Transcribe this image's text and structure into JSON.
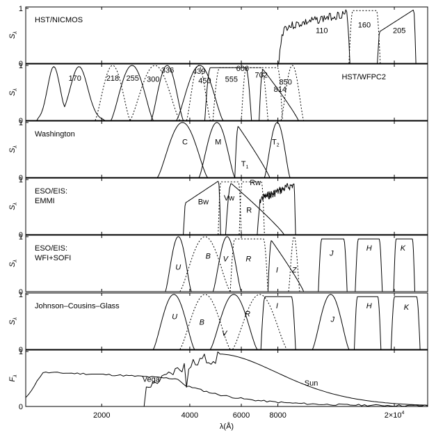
{
  "chart_data": {
    "type": "line",
    "xlabel": "λ(Å)",
    "x_scale": "log",
    "xlim": [
      1100,
      26000
    ],
    "x_ticks": [
      {
        "value": 2000,
        "label": "2000"
      },
      {
        "value": 4000,
        "label": "4000"
      },
      {
        "value": 6000,
        "label": "6000"
      },
      {
        "value": 8000,
        "label": "8000"
      },
      {
        "value": 20000,
        "label": "2×10",
        "exponent": "4"
      }
    ],
    "panels": [
      {
        "id": "hst-nicmos",
        "title": [
          "HST/NICMOS"
        ],
        "title_pos": "left",
        "ylabel": "S",
        "ylabel_sub": "λ",
        "ylim": [
          0,
          1
        ],
        "y_ticks": [
          "0",
          "1"
        ],
        "filters": [
          {
            "label": "110",
            "style": "solid",
            "italic": false,
            "lo": 8000,
            "hi": 14100,
            "kind": "noisy",
            "seed": 3,
            "label_x": 11300,
            "label_y": 0.55
          },
          {
            "label": "160",
            "style": "dotted",
            "italic": false,
            "lo": 14000,
            "hi": 17900,
            "kind": "flat",
            "label_x": 15800,
            "label_y": 0.65
          },
          {
            "label": "205",
            "style": "solid",
            "italic": false,
            "lo": 17500,
            "hi": 23700,
            "kind": "rising",
            "label_x": 20800,
            "label_y": 0.55
          }
        ]
      },
      {
        "id": "hst-wfpc2",
        "title": [
          "HST/WFPC2"
        ],
        "title_pos": "right",
        "ylabel": "S",
        "ylabel_sub": "λ",
        "ylim": [
          0,
          1
        ],
        "y_ticks": [
          "0",
          "1"
        ],
        "filters": [
          {
            "label": "170",
            "style": "solid",
            "italic": false,
            "lo": 1200,
            "hi": 2050,
            "kind": "double",
            "label_x": 1620,
            "label_y": 0.72
          },
          {
            "label": "218",
            "style": "dotted",
            "italic": false,
            "lo": 1900,
            "hi": 2500,
            "kind": "bell",
            "label_x": 2180,
            "label_y": 0.72
          },
          {
            "label": "255",
            "style": "solid",
            "italic": false,
            "lo": 2150,
            "hi": 3000,
            "kind": "bell",
            "label_x": 2550,
            "label_y": 0.72
          },
          {
            "label": "300",
            "style": "dotted",
            "italic": false,
            "lo": 2500,
            "hi": 3700,
            "kind": "bell",
            "label_x": 3000,
            "label_y": 0.7
          },
          {
            "label": "336",
            "style": "solid",
            "italic": false,
            "lo": 2950,
            "hi": 3800,
            "kind": "bell",
            "label_x": 3360,
            "label_y": 0.87
          },
          {
            "label": "439",
            "style": "dotted",
            "italic": false,
            "lo": 3900,
            "hi": 4700,
            "kind": "bell",
            "label_x": 4300,
            "label_y": 0.85
          },
          {
            "label": "450",
            "style": "solid",
            "italic": false,
            "lo": 3600,
            "hi": 5200,
            "kind": "bell",
            "label_x": 4500,
            "label_y": 0.68
          },
          {
            "label": "555",
            "style": "solid",
            "italic": false,
            "lo": 4500,
            "hi": 6500,
            "kind": "flat",
            "label_x": 5550,
            "label_y": 0.7
          },
          {
            "label": "606",
            "style": "dotted",
            "italic": false,
            "lo": 4800,
            "hi": 7400,
            "kind": "flat",
            "label_x": 6060,
            "label_y": 0.9
          },
          {
            "label": "702",
            "style": "dotted",
            "italic": false,
            "lo": 6000,
            "hi": 8300,
            "kind": "flat",
            "label_x": 7020,
            "label_y": 0.78
          },
          {
            "label": "814",
            "style": "solid",
            "italic": false,
            "lo": 6900,
            "hi": 9400,
            "kind": "declining",
            "label_x": 8140,
            "label_y": 0.52
          },
          {
            "label": "850",
            "style": "dotted",
            "italic": false,
            "lo": 8200,
            "hi": 9800,
            "kind": "bell",
            "label_x": 8500,
            "label_y": 0.65
          }
        ]
      },
      {
        "id": "washington",
        "title": [
          "Washington"
        ],
        "title_pos": "left",
        "ylabel": "S",
        "ylabel_sub": "λ",
        "ylim": [
          0,
          1
        ],
        "y_ticks": [
          "0",
          "1"
        ],
        "filters": [
          {
            "label": "C",
            "sub": "",
            "style": "solid",
            "italic": false,
            "lo": 3100,
            "hi": 4600,
            "kind": "bell",
            "label_x": 3850,
            "label_y": 0.6
          },
          {
            "label": "M",
            "sub": "",
            "style": "solid",
            "italic": false,
            "lo": 4300,
            "hi": 5700,
            "kind": "bell",
            "label_x": 5000,
            "label_y": 0.6
          },
          {
            "label": "T",
            "sub": "1",
            "style": "solid",
            "italic": false,
            "lo": 5700,
            "hi": 7500,
            "kind": "declining",
            "label_x": 6170,
            "label_y": 0.2
          },
          {
            "label": "T",
            "sub": "2",
            "style": "solid",
            "italic": false,
            "lo": 7200,
            "hi": 8800,
            "kind": "bell",
            "label_x": 7860,
            "label_y": 0.6
          }
        ]
      },
      {
        "id": "eso-emmi",
        "title": [
          "ESO/EIS:",
          "EMMI"
        ],
        "title_pos": "left",
        "ylabel": "S",
        "ylabel_sub": "λ",
        "ylim": [
          0,
          1
        ],
        "y_ticks": [
          "0",
          "1"
        ],
        "filters": [
          {
            "label": "Bw",
            "style": "solid",
            "italic": false,
            "lo": 3800,
            "hi": 5100,
            "kind": "rising",
            "label_x": 4450,
            "label_y": 0.55
          },
          {
            "label": "Vw",
            "style": "dotted",
            "italic": false,
            "lo": 5000,
            "hi": 6000,
            "kind": "flat",
            "label_x": 5450,
            "label_y": 0.62
          },
          {
            "label": "R",
            "style": "solid",
            "italic": false,
            "lo": 5300,
            "hi": 8400,
            "kind": "declining",
            "label_x": 6380,
            "label_y": 0.4
          },
          {
            "label": "Rw",
            "style": "dotted",
            "italic": false,
            "lo": 5900,
            "hi": 7200,
            "kind": "flat",
            "label_x": 6700,
            "label_y": 0.9
          },
          {
            "label": "Iw",
            "style": "solid",
            "italic": false,
            "lo": 6800,
            "hi": 9200,
            "kind": "noisy",
            "seed": 7,
            "label_x": 7550,
            "label_y": 0.68
          }
        ]
      },
      {
        "id": "eso-wfi-sofi",
        "title": [
          "ESO/EIS:",
          "WFI+SOFI"
        ],
        "title_pos": "left",
        "ylabel": "S",
        "ylabel_sub": "λ",
        "ylim": [
          0,
          1
        ],
        "y_ticks": [
          "0",
          "1"
        ],
        "filters": [
          {
            "label": "U",
            "style": "solid",
            "italic": true,
            "lo": 3300,
            "hi": 4050,
            "kind": "bell",
            "label_x": 3650,
            "label_y": 0.4
          },
          {
            "label": "B",
            "style": "dotted",
            "italic": true,
            "lo": 3700,
            "hi": 5500,
            "kind": "bell",
            "label_x": 4620,
            "label_y": 0.6
          },
          {
            "label": "V",
            "style": "solid",
            "italic": true,
            "lo": 4800,
            "hi": 6000,
            "kind": "bell",
            "label_x": 5300,
            "label_y": 0.55
          },
          {
            "label": "R",
            "style": "dotted",
            "italic": true,
            "lo": 5500,
            "hi": 7400,
            "kind": "flat",
            "label_x": 6350,
            "label_y": 0.55
          },
          {
            "label": "I",
            "style": "solid",
            "italic": true,
            "lo": 7400,
            "hi": 9800,
            "kind": "declining",
            "label_x": 7950,
            "label_y": 0.35
          },
          {
            "label": "Z",
            "style": "dotted",
            "italic": true,
            "lo": 8700,
            "hi": 9500,
            "kind": "bell",
            "label_x": 9100,
            "label_y": 0.35
          },
          {
            "label": "J",
            "style": "solid",
            "italic": true,
            "lo": 11000,
            "hi": 13800,
            "kind": "flat",
            "label_x": 12200,
            "label_y": 0.65
          },
          {
            "label": "H",
            "style": "solid",
            "italic": true,
            "lo": 14700,
            "hi": 18200,
            "kind": "flat",
            "label_x": 16400,
            "label_y": 0.75
          },
          {
            "label": "K",
            "style": "solid",
            "italic": true,
            "lo": 19900,
            "hi": 23500,
            "kind": "flat",
            "label_x": 21400,
            "label_y": 0.75
          }
        ]
      },
      {
        "id": "johnson-cousins-glass",
        "title": [
          "Johnson–Cousins–Glass"
        ],
        "title_pos": "left",
        "ylabel": "S",
        "ylabel_sub": "λ",
        "ylim": [
          0,
          1
        ],
        "y_ticks": [
          "0",
          "1"
        ],
        "filters": [
          {
            "label": "U",
            "style": "solid",
            "italic": true,
            "lo": 3000,
            "hi": 4150,
            "kind": "bell",
            "label_x": 3550,
            "label_y": 0.55
          },
          {
            "label": "B",
            "style": "dotted",
            "italic": true,
            "lo": 3700,
            "hi": 5500,
            "kind": "bell",
            "label_x": 4400,
            "label_y": 0.45
          },
          {
            "label": "V",
            "style": "solid",
            "italic": true,
            "lo": 4700,
            "hi": 6800,
            "kind": "bell",
            "label_x": 5250,
            "label_y": 0.25
          },
          {
            "label": "R",
            "style": "dotted",
            "italic": true,
            "lo": 5600,
            "hi": 8600,
            "kind": "bell",
            "label_x": 6300,
            "label_y": 0.6
          },
          {
            "label": "I",
            "style": "solid",
            "italic": true,
            "lo": 7000,
            "hi": 9200,
            "kind": "flat",
            "label_x": 7950,
            "label_y": 0.75
          },
          {
            "label": "J",
            "style": "solid",
            "italic": true,
            "lo": 10500,
            "hi": 14000,
            "kind": "bell",
            "label_x": 12300,
            "label_y": 0.5
          },
          {
            "label": "H",
            "style": "solid",
            "italic": true,
            "lo": 14600,
            "hi": 18000,
            "kind": "flat",
            "label_x": 16400,
            "label_y": 0.75
          },
          {
            "label": "K",
            "style": "solid",
            "italic": true,
            "lo": 19500,
            "hi": 24500,
            "kind": "flat",
            "label_x": 22000,
            "label_y": 0.72
          }
        ]
      },
      {
        "id": "spectra",
        "title": [],
        "title_pos": "left",
        "ylabel": "F",
        "ylabel_sub": "λ",
        "ylim": [
          0,
          1
        ],
        "y_ticks": [
          "0",
          "1"
        ],
        "spectra": [
          {
            "label": "Vega",
            "label_x": 2950,
            "label_y": 0.45
          },
          {
            "label": "Sun",
            "label_x": 10400,
            "label_y": 0.38
          }
        ]
      }
    ]
  }
}
